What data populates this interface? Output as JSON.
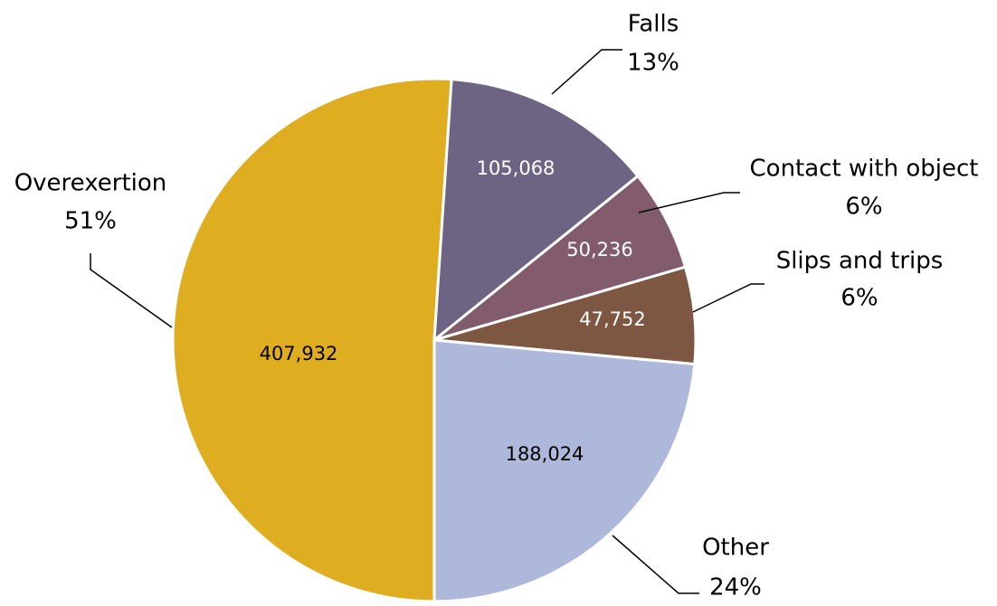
{
  "chart_data": {
    "type": "pie",
    "categories": [
      "Overexertion",
      "Falls",
      "Contact with object",
      "Slips and trips",
      "Other"
    ],
    "values": [
      407932,
      105068,
      50236,
      47752,
      188024
    ],
    "value_labels": [
      "407,932",
      "105,068",
      "50,236",
      "47,752",
      "188,024"
    ],
    "percents": [
      51,
      13,
      6,
      6,
      24
    ],
    "percent_labels": [
      "51%",
      "13%",
      "6%",
      "6%",
      "24%"
    ],
    "colors": [
      "#dfae20",
      "#6c6482",
      "#825c6c",
      "#7d5741",
      "#adb8db"
    ]
  }
}
